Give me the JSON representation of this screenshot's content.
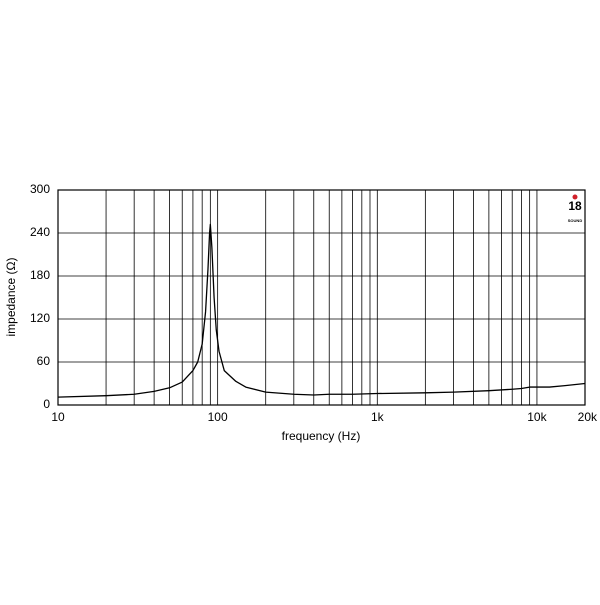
{
  "chart_data": {
    "type": "line",
    "xlabel": "frequency (Hz)",
    "ylabel": "impedance (Ω)",
    "logo": {
      "number": "18",
      "text": "SOUND"
    },
    "x": [
      10,
      20,
      30,
      40,
      50,
      60,
      70,
      75,
      80,
      84,
      87,
      89,
      90,
      92,
      95,
      98,
      102,
      110,
      130,
      150,
      200,
      300,
      400,
      500,
      600,
      700,
      1000,
      2000,
      3000,
      5000,
      7000,
      8000,
      9000,
      10000,
      12000,
      15000,
      20000
    ],
    "series": [
      {
        "name": "impedance",
        "color": "#000000",
        "values": [
          11,
          13,
          15,
          19,
          24,
          32,
          48,
          60,
          85,
          130,
          190,
          240,
          252,
          220,
          150,
          105,
          75,
          48,
          33,
          25,
          18,
          15,
          14,
          15,
          15,
          15,
          16,
          17,
          18,
          20,
          22,
          23,
          25,
          25,
          25,
          27,
          30
        ]
      }
    ],
    "xscale": "log",
    "xlim": [
      10,
      20000
    ],
    "ylim": [
      0,
      300
    ],
    "xticks": [
      10,
      100,
      {
        "value": 1000,
        "label": "1k"
      },
      {
        "value": 10000,
        "label": "10k"
      },
      {
        "value": 20000,
        "label": "20k"
      }
    ],
    "x_minor_grid": [
      20,
      30,
      40,
      50,
      60,
      70,
      80,
      90,
      200,
      300,
      400,
      500,
      600,
      700,
      800,
      900,
      2000,
      3000,
      4000,
      5000,
      6000,
      7000,
      8000,
      9000
    ],
    "yticks": [
      0,
      60,
      120,
      180,
      240,
      300
    ],
    "grid": true
  }
}
